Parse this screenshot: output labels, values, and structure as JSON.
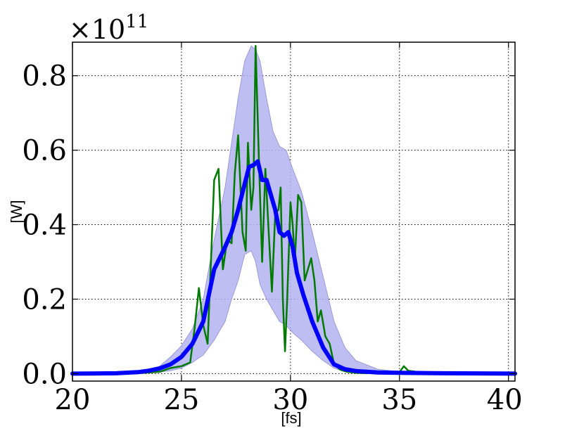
{
  "chart_data": {
    "type": "line",
    "xlabel": "[fs]",
    "ylabel": "[W]",
    "offset_text": {
      "base": "×10",
      "exponent": "11"
    },
    "xlim": [
      20,
      40.3
    ],
    "ylim": [
      -0.02,
      0.89
    ],
    "xticks": [
      {
        "value": 20,
        "label": "20"
      },
      {
        "value": 25,
        "label": "25"
      },
      {
        "value": 30,
        "label": "30"
      },
      {
        "value": 35,
        "label": "35"
      },
      {
        "value": 40,
        "label": "40"
      }
    ],
    "yticks": [
      {
        "value": 0.0,
        "label": "0.0"
      },
      {
        "value": 0.2,
        "label": "0.2"
      },
      {
        "value": 0.4,
        "label": "0.4"
      },
      {
        "value": 0.6,
        "label": "0.6"
      },
      {
        "value": 0.8,
        "label": "0.8"
      }
    ],
    "grid": true,
    "colors": {
      "band": "#b3b3f0",
      "band_edge": "#9a9ad8",
      "mean": "#0000ff",
      "single": "#007a00"
    },
    "band": {
      "x": [
        20,
        22,
        23,
        23.5,
        24,
        24.5,
        25,
        25.5,
        26,
        26.5,
        27,
        27.3,
        27.6,
        27.9,
        28.2,
        28.4,
        28.6,
        28.9,
        29.2,
        29.5,
        29.8,
        30.1,
        30.5,
        31,
        31.5,
        32,
        32.5,
        33,
        34,
        35,
        37,
        40.3
      ],
      "upper": [
        0,
        0.002,
        0.005,
        0.01,
        0.02,
        0.045,
        0.075,
        0.12,
        0.2,
        0.36,
        0.5,
        0.62,
        0.74,
        0.84,
        0.88,
        0.87,
        0.84,
        0.74,
        0.65,
        0.61,
        0.6,
        0.55,
        0.49,
        0.38,
        0.26,
        0.14,
        0.07,
        0.035,
        0.012,
        0.005,
        0.002,
        0
      ],
      "lower": [
        0,
        0,
        0,
        0.002,
        0.004,
        0.008,
        0.015,
        0.03,
        0.05,
        0.09,
        0.14,
        0.2,
        0.25,
        0.32,
        0.33,
        0.3,
        0.24,
        0.2,
        0.17,
        0.14,
        0.13,
        0.11,
        0.09,
        0.06,
        0.035,
        0.015,
        0.005,
        0.002,
        0,
        0,
        0,
        0
      ]
    },
    "series": [
      {
        "color": "#007a00",
        "x": [
          20,
          23,
          24,
          24.5,
          25,
          25.4,
          25.6,
          25.8,
          26.0,
          26.2,
          26.35,
          26.5,
          26.7,
          26.9,
          27.1,
          27.3,
          27.45,
          27.6,
          27.8,
          27.95,
          28.05,
          28.2,
          28.3,
          28.4,
          28.55,
          28.7,
          28.85,
          29.0,
          29.15,
          29.3,
          29.45,
          29.55,
          29.65,
          29.75,
          29.85,
          30.0,
          30.1,
          30.2,
          30.35,
          30.5,
          30.65,
          30.8,
          30.95,
          31.1,
          31.25,
          31.4,
          31.6,
          31.8,
          32.0,
          32.3,
          32.6,
          33.0,
          33.5,
          34.0,
          34.5,
          35.0,
          35.2,
          35.4,
          36,
          37,
          38,
          40.3
        ],
        "y": [
          0,
          0.001,
          0.005,
          0.015,
          0.02,
          0.03,
          0.12,
          0.23,
          0.13,
          0.08,
          0.3,
          0.52,
          0.55,
          0.28,
          0.36,
          0.35,
          0.54,
          0.64,
          0.38,
          0.33,
          0.62,
          0.44,
          0.5,
          0.88,
          0.58,
          0.3,
          0.55,
          0.38,
          0.22,
          0.43,
          0.44,
          0.5,
          0.2,
          0.06,
          0.2,
          0.46,
          0.4,
          0.3,
          0.48,
          0.46,
          0.25,
          0.28,
          0.31,
          0.25,
          0.14,
          0.17,
          0.1,
          0.08,
          0.025,
          0.01,
          0.005,
          0.002,
          0.001,
          0.003,
          0.002,
          0.004,
          0.02,
          0.008,
          0.003,
          0.001,
          0,
          0
        ]
      },
      {
        "color": "#0000ff",
        "x": [
          20,
          22,
          23,
          23.5,
          24,
          24.5,
          25,
          25.5,
          26,
          26.5,
          27,
          27.3,
          27.6,
          27.9,
          28.1,
          28.3,
          28.5,
          28.7,
          28.9,
          29.1,
          29.3,
          29.5,
          29.7,
          29.9,
          30.1,
          30.3,
          30.6,
          31,
          31.5,
          32,
          32.5,
          33,
          34,
          35,
          37,
          40.3
        ],
        "y": [
          0,
          0.001,
          0.004,
          0.008,
          0.014,
          0.025,
          0.045,
          0.08,
          0.14,
          0.28,
          0.34,
          0.38,
          0.44,
          0.51,
          0.555,
          0.56,
          0.57,
          0.52,
          0.52,
          0.48,
          0.44,
          0.38,
          0.37,
          0.38,
          0.34,
          0.27,
          0.21,
          0.14,
          0.07,
          0.025,
          0.012,
          0.007,
          0.003,
          0.002,
          0.001,
          0
        ]
      }
    ]
  }
}
